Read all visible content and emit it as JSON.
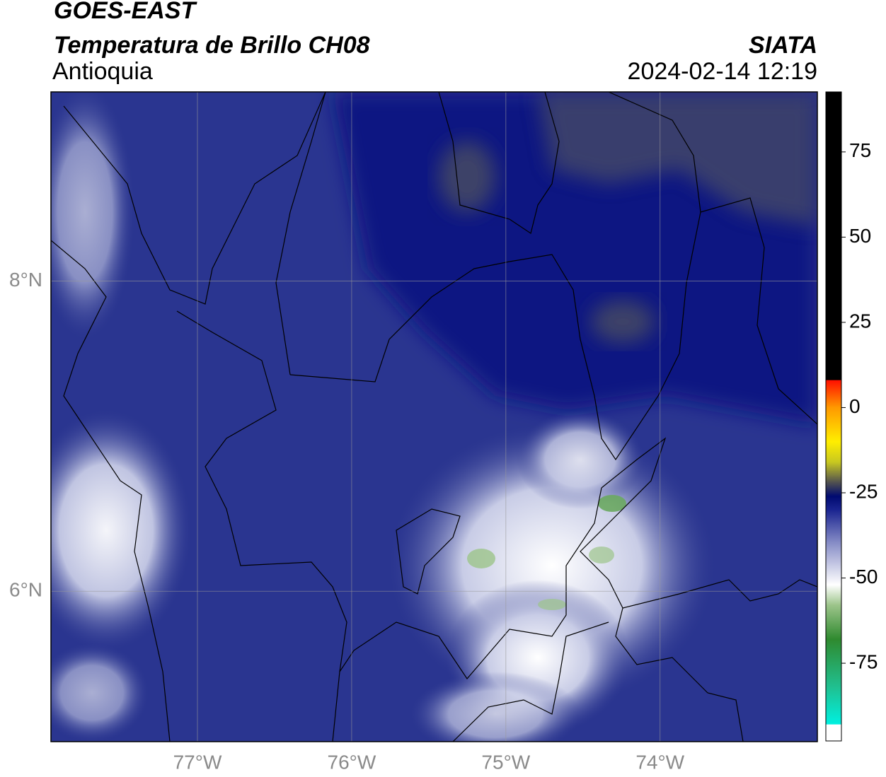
{
  "header": {
    "satellite": "GOES-EAST",
    "title": "Temperatura de Brillo CH08",
    "region": "Antioquia",
    "source": "SIATA",
    "datetime": "2024-02-14 12:19"
  },
  "map": {
    "xlim": [
      -77.95,
      -72.98
    ],
    "ylim": [
      5.03,
      9.22
    ],
    "xticks": [
      {
        "value": -77,
        "label": "77°W"
      },
      {
        "value": -76,
        "label": "76°W"
      },
      {
        "value": -75,
        "label": "75°W"
      },
      {
        "value": -74,
        "label": "74°W"
      }
    ],
    "yticks": [
      {
        "value": 6,
        "label": "6°N"
      },
      {
        "value": 8,
        "label": "8°N"
      }
    ],
    "grid": true
  },
  "colorbar": {
    "clim": [
      -97.8,
      92.6
    ],
    "ticks": [
      -75,
      -50,
      -25,
      0,
      25,
      50,
      75
    ],
    "colormap": [
      {
        "value": -97.8,
        "color": "#ffffff"
      },
      {
        "value": -93,
        "color": "#ffffff"
      },
      {
        "value": -92.9,
        "color": "#00f0e0"
      },
      {
        "value": -82,
        "color": "#20c090"
      },
      {
        "value": -68,
        "color": "#2f8a2f"
      },
      {
        "value": -58,
        "color": "#9cc48a"
      },
      {
        "value": -52,
        "color": "#ffffff"
      },
      {
        "value": -40,
        "color": "#8a90c8"
      },
      {
        "value": -30,
        "color": "#1a2490"
      },
      {
        "value": -26,
        "color": "#000a70"
      },
      {
        "value": -22,
        "color": "#505050"
      },
      {
        "value": -16,
        "color": "#c8c820"
      },
      {
        "value": -10,
        "color": "#ffee00"
      },
      {
        "value": 0,
        "color": "#ff9900"
      },
      {
        "value": 8,
        "color": "#ff1000"
      },
      {
        "value": 8.1,
        "color": "#000000"
      },
      {
        "value": 92.6,
        "color": "#000000"
      }
    ]
  }
}
